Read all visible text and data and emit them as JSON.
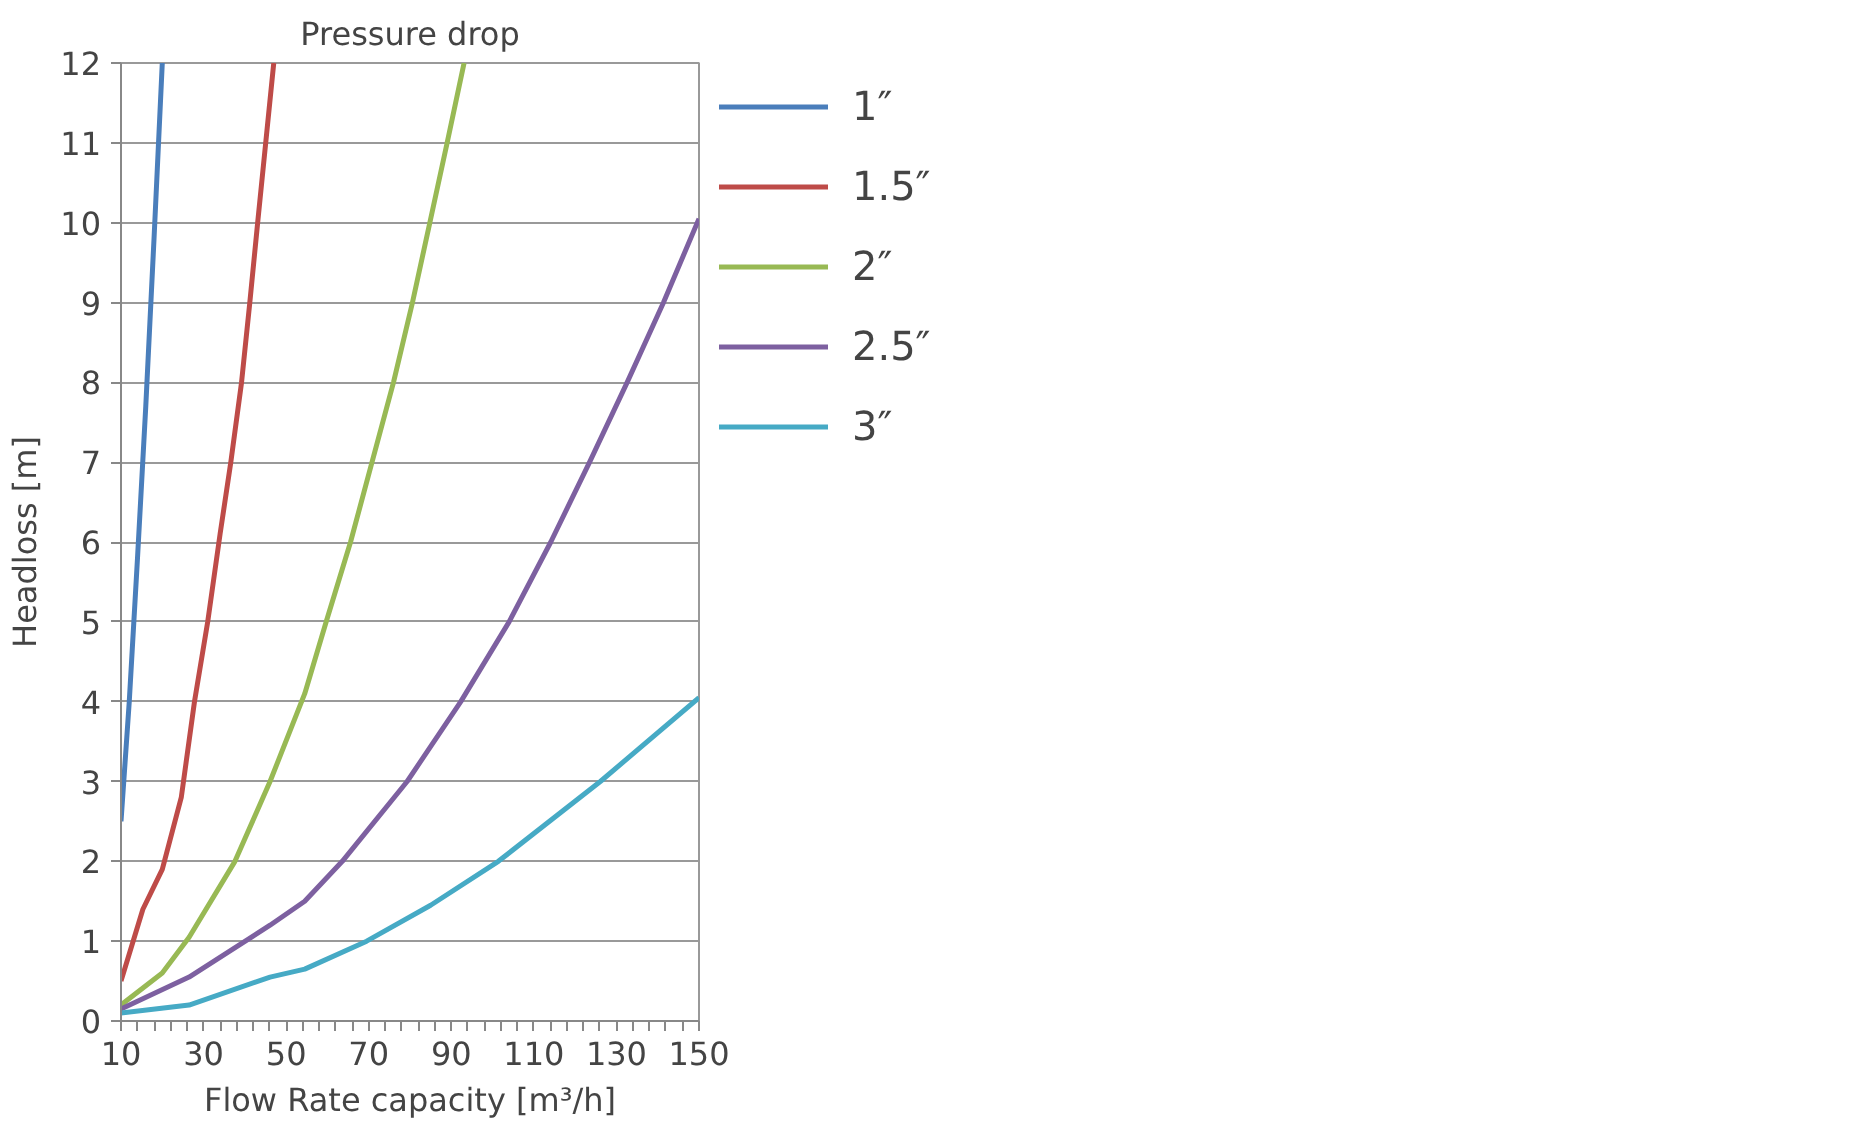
{
  "chart_data": {
    "type": "line",
    "title": "Pressure drop",
    "xlabel": "Flow Rate capacity [m³/h]",
    "ylabel": "Headloss [m]",
    "xlim": [
      10,
      150
    ],
    "ylim": [
      0,
      12
    ],
    "xticks": [
      10,
      {
        "value": 14,
        "label": null
      },
      {
        "value": 18,
        "label": null
      },
      {
        "value": 22,
        "label": null
      },
      {
        "value": 26,
        "label": null
      },
      30,
      {
        "value": 34,
        "label": null
      },
      {
        "value": 38,
        "label": null
      },
      {
        "value": 42,
        "label": null
      },
      {
        "value": 46,
        "label": null
      },
      50,
      {
        "value": 54,
        "label": null
      },
      {
        "value": 58,
        "label": null
      },
      {
        "value": 62,
        "label": null
      },
      {
        "value": 66,
        "label": null
      },
      70,
      {
        "value": 74,
        "label": null
      },
      {
        "value": 78,
        "label": null
      },
      {
        "value": 82,
        "label": null
      },
      {
        "value": 86,
        "label": null
      },
      90,
      {
        "value": 94,
        "label": null
      },
      {
        "value": 98,
        "label": null
      },
      {
        "value": 102,
        "label": null
      },
      {
        "value": 106,
        "label": null
      },
      110,
      {
        "value": 114,
        "label": null
      },
      {
        "value": 118,
        "label": null
      },
      {
        "value": 122,
        "label": null
      },
      {
        "value": 126,
        "label": null
      },
      130,
      {
        "value": 134,
        "label": null
      },
      {
        "value": 138,
        "label": null
      },
      {
        "value": 142,
        "label": null
      },
      {
        "value": 146,
        "label": null
      },
      150
    ],
    "yticks": [
      0,
      1,
      2,
      3,
      4,
      5,
      6,
      7,
      8,
      9,
      10,
      11,
      12
    ],
    "grid": "y",
    "legend": "right",
    "marker": "none",
    "line_style": "solid",
    "series": [
      {
        "name": "1″",
        "color": "#4a7ebb",
        "x": [
          10,
          12,
          14,
          16,
          18,
          20
        ],
        "values": [
          2.5,
          4.0,
          5.8,
          7.7,
          9.8,
          12
        ]
      },
      {
        "name": "1.5″",
        "color": "#be4b48",
        "x": [
          10,
          15.3,
          20,
          24.6,
          27.8,
          31,
          34,
          36.6,
          39.2,
          41.2,
          43.1,
          47
        ],
        "values": [
          0.5,
          1.4,
          1.9,
          2.8,
          4.0,
          5.0,
          6.1,
          7.0,
          8.0,
          9.0,
          10.0,
          12
        ]
      },
      {
        "name": "2″",
        "color": "#98b954",
        "x": [
          10,
          20,
          26.5,
          37.6,
          46.1,
          54.5,
          59.7,
          65.6,
          70.8,
          76,
          80.6,
          84.8,
          89,
          93.1
        ],
        "values": [
          0.2,
          0.6,
          1.05,
          2.0,
          3.0,
          4.1,
          5.0,
          6.0,
          7.0,
          8.0,
          9.0,
          10.0,
          11.0,
          12
        ]
      },
      {
        "name": "2.5″",
        "color": "#7d60a0",
        "x": [
          10,
          26.5,
          46.1,
          54.5,
          63.6,
          79.3,
          92.3,
          104,
          114.1,
          123.5,
          132.6,
          141.4,
          150
        ],
        "values": [
          0.15,
          0.55,
          1.2,
          1.5,
          2.0,
          3.0,
          4.0,
          5.0,
          6.0,
          7.0,
          8.0,
          9.0,
          10.05
        ]
      },
      {
        "name": "3″",
        "color": "#46aac5",
        "x": [
          10,
          26.5,
          46.1,
          54.5,
          69.5,
          85,
          101.4,
          126.1,
          150
        ],
        "values": [
          0.1,
          0.2,
          0.55,
          0.65,
          1.0,
          1.45,
          2.0,
          3.0,
          4.05
        ]
      }
    ]
  }
}
